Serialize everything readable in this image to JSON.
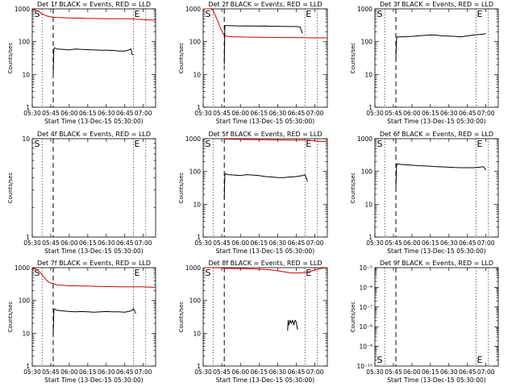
{
  "page": {
    "background": "#ffffff"
  },
  "style": {
    "events_color": "#000000",
    "lld_color": "#cc0000",
    "axis_color": "#000000"
  },
  "chart_data": [
    {
      "type": "line",
      "title": "Det 1f BLACK = Events, RED = LLD",
      "xlabel": "Start Time (13-Dec-15 05:30:00)",
      "ylabel": "Counts/sec",
      "yscale": "log",
      "xlim": [
        0,
        100
      ],
      "ylim": [
        1,
        1000
      ],
      "yticks": [
        1,
        10,
        100,
        1000
      ],
      "ytick_labels": [
        "1",
        "10",
        "100",
        "1000"
      ],
      "xticks": [
        0,
        15,
        30,
        45,
        60,
        75,
        90
      ],
      "xtick_labels": [
        "05:30",
        "05:45",
        "06:00",
        "06:15",
        "06:30",
        "06:45",
        "07:00"
      ],
      "markers": {
        "dotted": [
          8,
          82,
          92
        ],
        "dashed": [
          17
        ]
      },
      "annotations": [
        {
          "text": "S",
          "x": 1,
          "anchor": "top"
        },
        {
          "text": "E",
          "x": 82,
          "anchor": "top"
        }
      ],
      "series": [
        {
          "role": "lld",
          "color": "#cc0000",
          "x": [
            0,
            3,
            6,
            8,
            10,
            12,
            14,
            17,
            20,
            25,
            30,
            35,
            40,
            45,
            50,
            55,
            60,
            65,
            70,
            75,
            80,
            85,
            90,
            95,
            100
          ],
          "y": [
            1000,
            900,
            800,
            700,
            650,
            600,
            580,
            560,
            550,
            540,
            530,
            520,
            520,
            510,
            510,
            505,
            500,
            500,
            500,
            500,
            500,
            480,
            470,
            460,
            450
          ]
        },
        {
          "role": "events",
          "color": "#000000",
          "x": [
            17,
            17.5,
            18,
            20,
            25,
            30,
            35,
            40,
            45,
            50,
            55,
            60,
            65,
            70,
            75,
            78,
            80,
            81,
            82
          ],
          "y": [
            10,
            60,
            65,
            60,
            58,
            56,
            60,
            58,
            57,
            56,
            55,
            55,
            54,
            52,
            52,
            55,
            60,
            40,
            40
          ]
        }
      ]
    },
    {
      "type": "line",
      "title": "Det 2f BLACK = Events, RED = LLD",
      "xlabel": "Start Time (13-Dec-15 05:30:00)",
      "ylabel": "Counts/sec",
      "yscale": "log",
      "xlim": [
        0,
        100
      ],
      "ylim": [
        1,
        1000
      ],
      "yticks": [
        1,
        10,
        100,
        1000
      ],
      "ytick_labels": [
        "1",
        "10",
        "100",
        "1000"
      ],
      "xticks": [
        0,
        15,
        30,
        45,
        60,
        75,
        90
      ],
      "xtick_labels": [
        "05:30",
        "05:45",
        "06:00",
        "06:15",
        "06:30",
        "06:45",
        "07:00"
      ],
      "markers": {
        "dotted": [
          8,
          82,
          92
        ],
        "dashed": [
          17
        ]
      },
      "annotations": [
        {
          "text": "S",
          "x": 1,
          "anchor": "top"
        },
        {
          "text": "E",
          "x": 82,
          "anchor": "top"
        }
      ],
      "series": [
        {
          "role": "lld",
          "color": "#cc0000",
          "x": [
            0,
            3,
            6,
            8,
            10,
            12,
            14,
            16,
            17,
            18,
            20,
            25,
            30,
            35,
            40,
            45,
            50,
            55,
            60,
            65,
            70,
            75,
            80,
            85,
            90,
            95,
            100
          ],
          "y": [
            1000,
            1000,
            1000,
            900,
            600,
            400,
            250,
            180,
            160,
            150,
            145,
            140,
            140,
            138,
            137,
            136,
            135,
            135,
            134,
            133,
            133,
            132,
            132,
            131,
            130,
            130,
            130
          ]
        },
        {
          "role": "events",
          "color": "#000000",
          "x": [
            17,
            17.5,
            18,
            20,
            25,
            30,
            35,
            40,
            45,
            50,
            55,
            60,
            65,
            70,
            75,
            78,
            80
          ],
          "y": [
            20,
            300,
            310,
            310,
            305,
            300,
            302,
            300,
            298,
            300,
            295,
            295,
            293,
            290,
            290,
            280,
            180
          ]
        }
      ]
    },
    {
      "type": "line",
      "title": "Det 3f BLACK = Events, RED = LLD",
      "xlabel": "Start Time (13-Dec-15 05:30:00)",
      "ylabel": "Counts/sec",
      "yscale": "log",
      "xlim": [
        0,
        100
      ],
      "ylim": [
        1,
        1000
      ],
      "yticks": [
        1,
        10,
        100,
        1000
      ],
      "ytick_labels": [
        "1",
        "10",
        "100",
        "1000"
      ],
      "xticks": [
        0,
        15,
        30,
        45,
        60,
        75,
        90
      ],
      "xtick_labels": [
        "05:30",
        "05:45",
        "06:00",
        "06:15",
        "06:30",
        "06:45",
        "07:00"
      ],
      "markers": {
        "dotted": [
          8,
          82,
          92
        ],
        "dashed": [
          17
        ]
      },
      "annotations": [
        {
          "text": "S",
          "x": 1,
          "anchor": "top"
        },
        {
          "text": "E",
          "x": 82,
          "anchor": "top"
        }
      ],
      "series": [
        {
          "role": "events",
          "color": "#000000",
          "x": [
            17,
            17.5,
            18,
            20,
            25,
            30,
            35,
            40,
            45,
            50,
            55,
            60,
            65,
            70,
            75,
            80,
            85,
            88,
            90
          ],
          "y": [
            30,
            120,
            140,
            140,
            142,
            145,
            150,
            155,
            160,
            158,
            150,
            148,
            145,
            140,
            150,
            160,
            165,
            170,
            180
          ]
        }
      ]
    },
    {
      "type": "line",
      "title": "Det 4f BLACK = Events, RED = LLD",
      "xlabel": "Start Time (13-Dec-15 05:30:00)",
      "ylabel": "Counts/sec",
      "yscale": "log",
      "xlim": [
        0,
        100
      ],
      "ylim": [
        1,
        10
      ],
      "yticks": [
        1,
        10
      ],
      "ytick_labels": [
        "1",
        "10"
      ],
      "xticks": [
        0,
        15,
        30,
        45,
        60,
        75,
        90
      ],
      "xtick_labels": [
        "05:30",
        "05:45",
        "06:00",
        "06:15",
        "06:30",
        "06:45",
        "07:00"
      ],
      "markers": {
        "dotted": [
          8,
          82,
          92
        ],
        "dashed": [
          17
        ]
      },
      "annotations": [
        {
          "text": "S",
          "x": 1,
          "anchor": "top"
        },
        {
          "text": "E",
          "x": 82,
          "anchor": "top"
        }
      ],
      "series": []
    },
    {
      "type": "line",
      "title": "Det 5f BLACK = Events, RED = LLD",
      "xlabel": "Start Time (13-Dec-15 05:30:00)",
      "ylabel": "Counts/sec",
      "yscale": "log",
      "xlim": [
        0,
        100
      ],
      "ylim": [
        1,
        1000
      ],
      "yticks": [
        1,
        10,
        100,
        1000
      ],
      "ytick_labels": [
        "1",
        "10",
        "100",
        "1000"
      ],
      "xticks": [
        0,
        15,
        30,
        45,
        60,
        75,
        90
      ],
      "xtick_labels": [
        "05:30",
        "05:45",
        "06:00",
        "06:15",
        "06:30",
        "06:45",
        "07:00"
      ],
      "markers": {
        "dotted": [
          8,
          82,
          92
        ],
        "dashed": [
          17
        ]
      },
      "annotations": [
        {
          "text": "S",
          "x": 1,
          "anchor": "top"
        },
        {
          "text": "E",
          "x": 82,
          "anchor": "top"
        }
      ],
      "series": [
        {
          "role": "lld",
          "color": "#cc0000",
          "x": [
            17,
            20,
            25,
            30,
            35,
            40,
            45,
            50,
            55,
            60,
            65,
            70,
            75,
            80,
            85,
            90,
            95,
            100
          ],
          "y": [
            980,
            970,
            960,
            950,
            945,
            940,
            935,
            930,
            925,
            920,
            915,
            910,
            910,
            905,
            900,
            860,
            830,
            800
          ]
        },
        {
          "role": "events",
          "color": "#000000",
          "x": [
            17,
            17.5,
            18,
            20,
            25,
            30,
            35,
            40,
            45,
            50,
            55,
            60,
            65,
            70,
            75,
            80,
            82,
            84
          ],
          "y": [
            15,
            80,
            85,
            80,
            78,
            75,
            80,
            78,
            75,
            70,
            68,
            65,
            65,
            68,
            70,
            75,
            80,
            50
          ]
        }
      ]
    },
    {
      "type": "line",
      "title": "Det 6f BLACK = Events, RED = LLD",
      "xlabel": "Start Time (13-Dec-15 05:30:00)",
      "ylabel": "Counts/sec",
      "yscale": "log",
      "xlim": [
        0,
        100
      ],
      "ylim": [
        1,
        1000
      ],
      "yticks": [
        1,
        10,
        100,
        1000
      ],
      "ytick_labels": [
        "1",
        "10",
        "100",
        "1000"
      ],
      "xticks": [
        0,
        15,
        30,
        45,
        60,
        75,
        90
      ],
      "xtick_labels": [
        "05:30",
        "05:45",
        "06:00",
        "06:15",
        "06:30",
        "06:45",
        "07:00"
      ],
      "markers": {
        "dotted": [
          8,
          82,
          92
        ],
        "dashed": [
          17
        ]
      },
      "annotations": [
        {
          "text": "S",
          "x": 1,
          "anchor": "top"
        },
        {
          "text": "E",
          "x": 82,
          "anchor": "top"
        }
      ],
      "series": [
        {
          "role": "events",
          "color": "#000000",
          "x": [
            17,
            17.5,
            18,
            20,
            25,
            30,
            35,
            40,
            45,
            50,
            55,
            60,
            65,
            70,
            75,
            80,
            85,
            88,
            90
          ],
          "y": [
            30,
            150,
            170,
            165,
            160,
            155,
            150,
            148,
            145,
            140,
            138,
            135,
            132,
            130,
            130,
            130,
            135,
            140,
            110
          ]
        }
      ]
    },
    {
      "type": "line",
      "title": "Det 7f BLACK = Events, RED = LLD",
      "xlabel": "Start Time (13-Dec-15 05:30:00)",
      "ylabel": "Counts/sec",
      "yscale": "log",
      "xlim": [
        0,
        100
      ],
      "ylim": [
        1,
        1000
      ],
      "yticks": [
        1,
        10,
        100,
        1000
      ],
      "ytick_labels": [
        "1",
        "10",
        "100",
        "1000"
      ],
      "xticks": [
        0,
        15,
        30,
        45,
        60,
        75,
        90
      ],
      "xtick_labels": [
        "05:30",
        "05:45",
        "06:00",
        "06:15",
        "06:30",
        "06:45",
        "07:00"
      ],
      "markers": {
        "dotted": [
          8,
          82,
          92
        ],
        "dashed": [
          17
        ]
      },
      "annotations": [
        {
          "text": "S",
          "x": 1,
          "anchor": "top"
        },
        {
          "text": "E",
          "x": 82,
          "anchor": "top"
        }
      ],
      "series": [
        {
          "role": "lld",
          "color": "#cc0000",
          "x": [
            0,
            3,
            6,
            8,
            10,
            12,
            14,
            17,
            20,
            25,
            30,
            35,
            40,
            45,
            50,
            55,
            60,
            65,
            70,
            75,
            80,
            85,
            90,
            95,
            100
          ],
          "y": [
            1000,
            900,
            750,
            600,
            480,
            400,
            350,
            330,
            300,
            290,
            280,
            280,
            275,
            275,
            270,
            268,
            265,
            265,
            262,
            260,
            260,
            262,
            260,
            255,
            250
          ]
        },
        {
          "role": "events",
          "color": "#000000",
          "x": [
            17,
            17.5,
            18,
            20,
            25,
            30,
            35,
            40,
            45,
            50,
            55,
            60,
            65,
            70,
            75,
            80,
            82,
            84
          ],
          "y": [
            8,
            50,
            55,
            50,
            48,
            46,
            45,
            46,
            45,
            44,
            45,
            46,
            45,
            45,
            44,
            48,
            55,
            40
          ]
        }
      ]
    },
    {
      "type": "line",
      "title": "Det 8f BLACK = Events, RED = LLD",
      "xlabel": "Start Time (13-Dec-15 05:30:00)",
      "ylabel": "Counts/sec",
      "yscale": "log",
      "xlim": [
        0,
        100
      ],
      "ylim": [
        1,
        1000
      ],
      "yticks": [
        1,
        10,
        100,
        1000
      ],
      "ytick_labels": [
        "1",
        "10",
        "100",
        "1000"
      ],
      "xticks": [
        0,
        15,
        30,
        45,
        60,
        75,
        90
      ],
      "xtick_labels": [
        "05:30",
        "05:45",
        "06:00",
        "06:15",
        "06:30",
        "06:45",
        "07:00"
      ],
      "markers": {
        "dotted": [
          8,
          82,
          92
        ],
        "dashed": [
          17
        ]
      },
      "annotations": [
        {
          "text": "S",
          "x": 1,
          "anchor": "top"
        },
        {
          "text": "E",
          "x": 82,
          "anchor": "top"
        }
      ],
      "series": [
        {
          "role": "lld",
          "color": "#cc0000",
          "x": [
            0,
            8,
            14,
            17,
            20,
            25,
            30,
            35,
            40,
            45,
            50,
            55,
            60,
            65,
            70,
            75,
            80,
            85,
            90,
            95,
            100
          ],
          "y": [
            1000,
            1000,
            990,
            950,
            950,
            940,
            940,
            930,
            920,
            900,
            880,
            850,
            800,
            750,
            700,
            680,
            700,
            750,
            850,
            950,
            1000
          ]
        },
        {
          "role": "events",
          "color": "#000000",
          "x": [
            68,
            68.5,
            69,
            70,
            71,
            72,
            73,
            74,
            75,
            76
          ],
          "y": [
            12,
            25,
            18,
            25,
            20,
            25,
            18,
            25,
            22,
            13
          ]
        }
      ]
    },
    {
      "type": "line",
      "title": "Det 9f BLACK = Events, RED = LLD",
      "xlabel": "Start Time (13-Dec-15 05:30:00)",
      "ylabel": "Counts/sec",
      "yscale": "log",
      "xlim": [
        0,
        100
      ],
      "ylim": [
        1e-10,
        1e-05
      ],
      "yticks": [
        1e-10,
        1e-09,
        1e-08,
        1e-07,
        1e-06,
        1e-05
      ],
      "ytick_labels": [
        "10⁻¹⁰",
        "10⁻⁹",
        "10⁻⁸",
        "10⁻⁷",
        "10⁻⁶",
        "10⁻⁵"
      ],
      "xticks": [
        0,
        15,
        30,
        45,
        60,
        75,
        90
      ],
      "xtick_labels": [
        "05:30",
        "05:45",
        "06:00",
        "06:15",
        "06:30",
        "06:45",
        "07:00"
      ],
      "markers": {
        "dotted": [
          8,
          82,
          92
        ],
        "dashed": [
          17
        ]
      },
      "annotations": [
        {
          "text": "S",
          "x": 1,
          "anchor": "bottom"
        },
        {
          "text": "E",
          "x": 82,
          "anchor": "bottom"
        }
      ],
      "series": []
    }
  ]
}
